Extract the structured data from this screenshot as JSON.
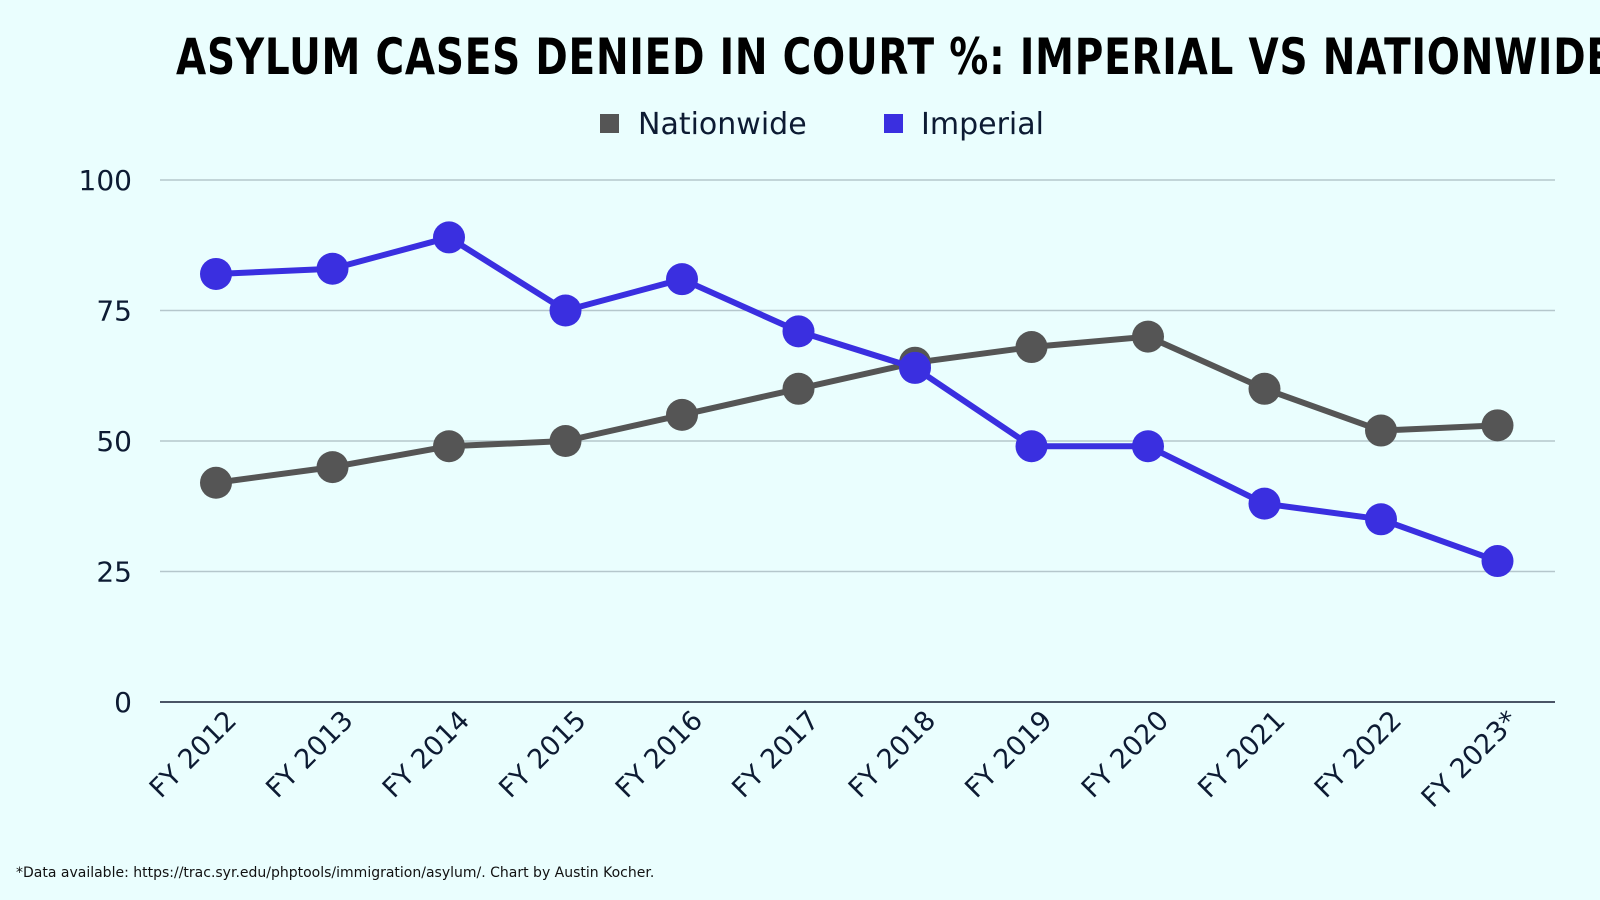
{
  "chart_data": {
    "type": "line",
    "title": "ASYLUM CASES DENIED IN COURT %: IMPERIAL VS NATIONWIDE",
    "categories": [
      "FY 2012",
      "FY 2013",
      "FY 2014",
      "FY 2015",
      "FY 2016",
      "FY 2017",
      "FY 2018",
      "FY 2019",
      "FY 2020",
      "FY 2021",
      "FY 2022",
      "FY 2023*"
    ],
    "series": [
      {
        "name": "Nationwide",
        "color": "#555555",
        "values": [
          42,
          45,
          49,
          50,
          55,
          60,
          65,
          68,
          70,
          60,
          52,
          53
        ]
      },
      {
        "name": "Imperial",
        "color": "#3a2fe0",
        "values": [
          82,
          83,
          89,
          75,
          81,
          71,
          64,
          49,
          49,
          38,
          35,
          27
        ]
      }
    ],
    "yticks": [
      "0",
      "25",
      "50",
      "75",
      "100"
    ],
    "ylim": [
      0,
      100
    ],
    "grid": true,
    "legend_position": "top-center",
    "xlabel": "",
    "ylabel": ""
  },
  "footnote": "*Data available: https://trac.syr.edu/phptools/immigration/asylum/. Chart by Austin Kocher."
}
